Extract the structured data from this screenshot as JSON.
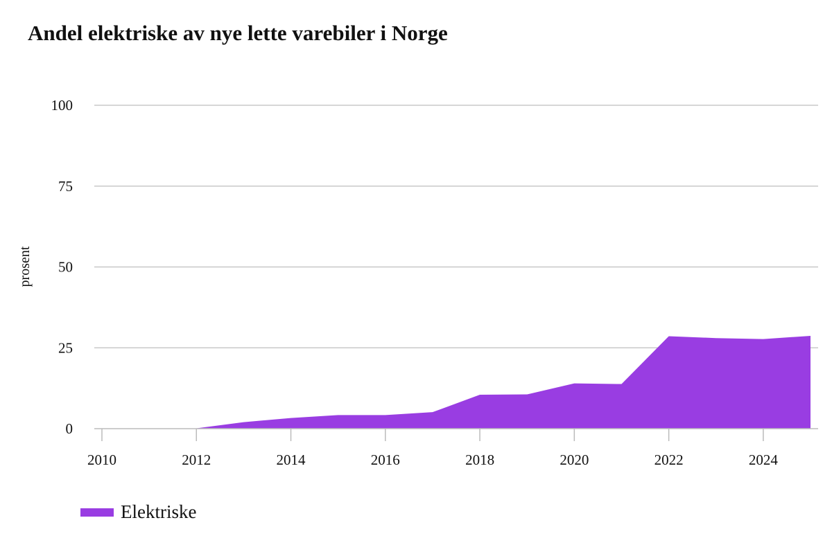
{
  "title": "Andel elektriske av nye lette varebiler i Norge",
  "colors": {
    "area": "#993de2",
    "grid": "#c8c8c8",
    "axis": "#bbbbbb",
    "text": "#111111"
  },
  "chart_data": {
    "type": "area",
    "title": "Andel elektriske av nye lette varebiler i Norge",
    "xlabel": "",
    "ylabel": "prosent",
    "xlim": [
      2010,
      2025
    ],
    "ylim": [
      0,
      100
    ],
    "x_ticks": [
      2010,
      2012,
      2014,
      2016,
      2018,
      2020,
      2022,
      2024
    ],
    "y_ticks": [
      0,
      25,
      50,
      75,
      100
    ],
    "grid": true,
    "legend_position": "bottom-left",
    "series": [
      {
        "name": "Elektriske",
        "x": [
          2012,
          2013,
          2014,
          2015,
          2016,
          2017,
          2018,
          2019,
          2020,
          2021,
          2022,
          2023,
          2024,
          2025
        ],
        "values": [
          0.1,
          2.0,
          3.3,
          4.2,
          4.2,
          5.1,
          10.5,
          10.6,
          14.0,
          13.8,
          28.6,
          28.0,
          27.7,
          28.7
        ]
      }
    ]
  },
  "legend": {
    "label": "Elektriske"
  }
}
